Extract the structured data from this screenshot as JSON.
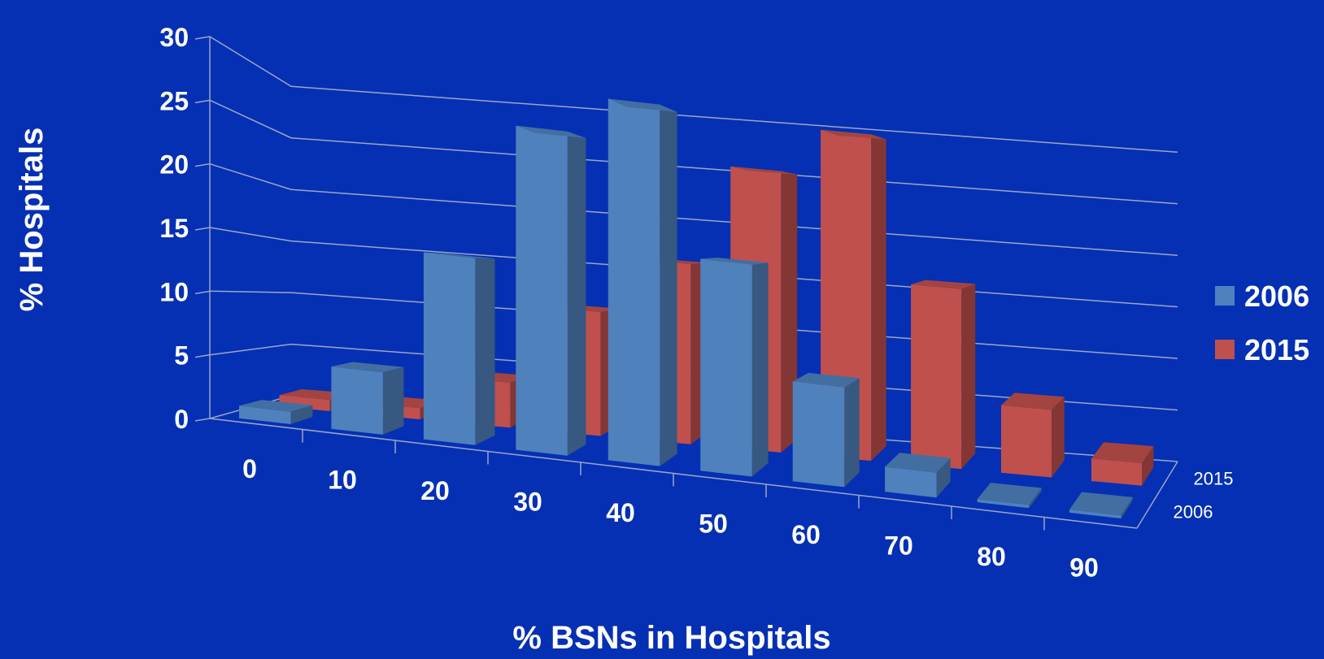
{
  "chart_data": {
    "type": "bar",
    "variant": "3d-column",
    "title": "",
    "xlabel": "% BSNs in Hospitals",
    "ylabel": "% Hospitals",
    "categories": [
      "0",
      "10",
      "20",
      "30",
      "40",
      "50",
      "60",
      "70",
      "80",
      "90"
    ],
    "series": [
      {
        "name": "2006",
        "color": "#4f81bd",
        "values": [
          1,
          5,
          15,
          26,
          29,
          17,
          8,
          2,
          0,
          0
        ]
      },
      {
        "name": "2015",
        "color": "#c0504d",
        "values": [
          1,
          1,
          4,
          11,
          16,
          25,
          29,
          16,
          6,
          2
        ]
      }
    ],
    "yticks": [
      "0",
      "5",
      "10",
      "15",
      "20",
      "25",
      "30"
    ],
    "ylim": [
      0,
      30
    ],
    "depth_labels": [
      "2015",
      "2006"
    ],
    "grid": true,
    "legend_position": "right"
  }
}
